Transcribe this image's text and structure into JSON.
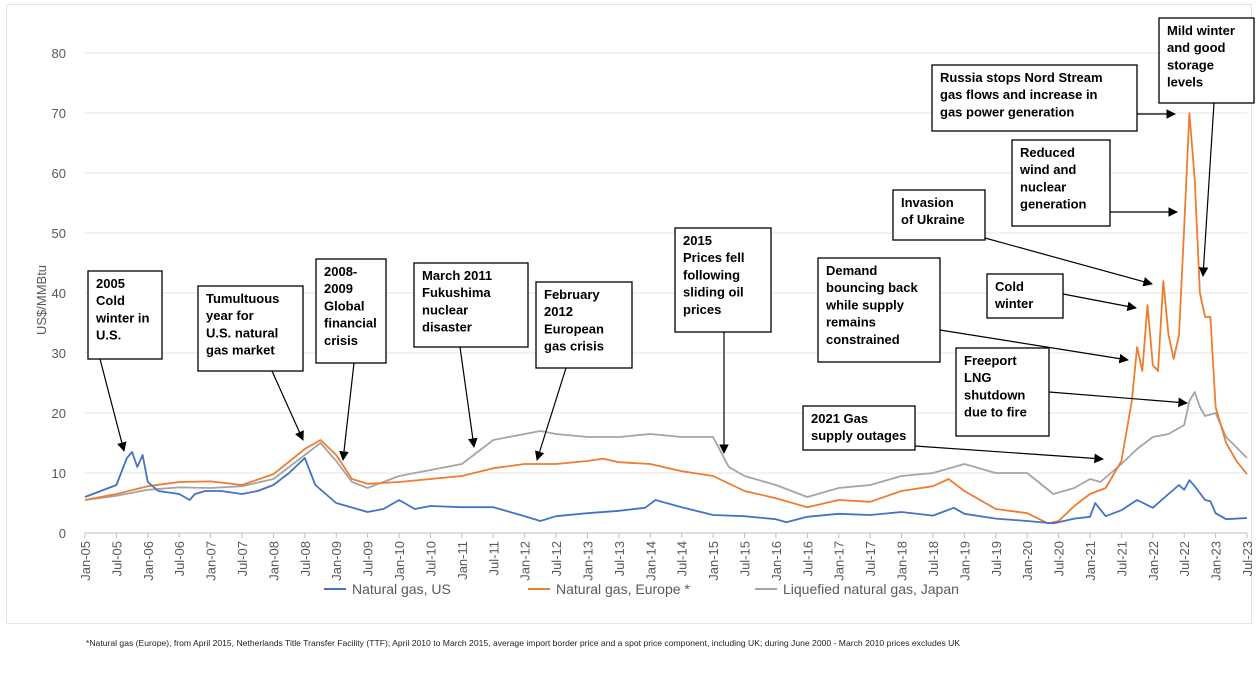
{
  "chart_data": {
    "type": "line",
    "title": "",
    "ylabel": "US$/MMBtu",
    "xlabel": "",
    "ylim": [
      0,
      80
    ],
    "yticks": [
      0,
      10,
      20,
      30,
      40,
      50,
      60,
      70,
      80
    ],
    "x_start": "Jan-05",
    "x_end": "Jul-23",
    "xticks": [
      "Jan-05",
      "Jul-05",
      "Jan-06",
      "Jul-06",
      "Jan-07",
      "Jul-07",
      "Jan-08",
      "Jul-08",
      "Jan-09",
      "Jul-09",
      "Jan-10",
      "Jul-10",
      "Jan-11",
      "Jul-11",
      "Jan-12",
      "Jul-12",
      "Jan-13",
      "Jul-13",
      "Jan-14",
      "Jul-14",
      "Jan-15",
      "Jul-15",
      "Jan-16",
      "Jul-16",
      "Jan-17",
      "Jul-17",
      "Jan-18",
      "Jul-18",
      "Jan-19",
      "Jul-19",
      "Jan-20",
      "Jul-20",
      "Jan-21",
      "Jul-21",
      "Jan-22",
      "Jul-22",
      "Jan-23",
      "Jul-23"
    ],
    "grid": true,
    "legend_position": "bottom",
    "series": [
      {
        "name": "Natural gas, US",
        "color": "#4472c4",
        "points": [
          [
            "Jan-05",
            6.0
          ],
          [
            "Apr-05",
            7.0
          ],
          [
            "Jul-05",
            8.0
          ],
          [
            "Sep-05",
            12.5
          ],
          [
            "Oct-05",
            13.5
          ],
          [
            "Nov-05",
            11.0
          ],
          [
            "Dec-05",
            13.0
          ],
          [
            "Jan-06",
            8.5
          ],
          [
            "Mar-06",
            7.0
          ],
          [
            "Jul-06",
            6.5
          ],
          [
            "Sep-06",
            5.5
          ],
          [
            "Oct-06",
            6.5
          ],
          [
            "Dec-06",
            7.0
          ],
          [
            "Mar-07",
            7.0
          ],
          [
            "Jul-07",
            6.5
          ],
          [
            "Oct-07",
            7.0
          ],
          [
            "Jan-08",
            8.0
          ],
          [
            "Apr-08",
            10.0
          ],
          [
            "Jul-08",
            12.5
          ],
          [
            "Sep-08",
            8.0
          ],
          [
            "Jan-09",
            5.0
          ],
          [
            "Jul-09",
            3.5
          ],
          [
            "Oct-09",
            4.0
          ],
          [
            "Jan-10",
            5.5
          ],
          [
            "Apr-10",
            4.0
          ],
          [
            "Jul-10",
            4.5
          ],
          [
            "Jan-11",
            4.3
          ],
          [
            "Jul-11",
            4.3
          ],
          [
            "Jan-12",
            2.8
          ],
          [
            "Apr-12",
            2.0
          ],
          [
            "Jul-12",
            2.8
          ],
          [
            "Jan-13",
            3.3
          ],
          [
            "Jul-13",
            3.7
          ],
          [
            "Dec-13",
            4.2
          ],
          [
            "Feb-14",
            5.5
          ],
          [
            "Jul-14",
            4.3
          ],
          [
            "Jan-15",
            3.0
          ],
          [
            "Jul-15",
            2.8
          ],
          [
            "Jan-16",
            2.3
          ],
          [
            "Mar-16",
            1.8
          ],
          [
            "Jul-16",
            2.7
          ],
          [
            "Jan-17",
            3.2
          ],
          [
            "Jul-17",
            3.0
          ],
          [
            "Jan-18",
            3.5
          ],
          [
            "Jul-18",
            2.9
          ],
          [
            "Nov-18",
            4.2
          ],
          [
            "Jan-19",
            3.2
          ],
          [
            "Jul-19",
            2.4
          ],
          [
            "Jan-20",
            2.0
          ],
          [
            "Jun-20",
            1.6
          ],
          [
            "Oct-20",
            2.4
          ],
          [
            "Jan-21",
            2.7
          ],
          [
            "Feb-21",
            5.0
          ],
          [
            "Apr-21",
            2.8
          ],
          [
            "Jul-21",
            3.8
          ],
          [
            "Oct-21",
            5.5
          ],
          [
            "Jan-22",
            4.2
          ],
          [
            "Apr-22",
            6.5
          ],
          [
            "Jun-22",
            8.0
          ],
          [
            "Jul-22",
            7.2
          ],
          [
            "Aug-22",
            8.8
          ],
          [
            "Sep-22",
            7.8
          ],
          [
            "Nov-22",
            5.5
          ],
          [
            "Dec-22",
            5.3
          ],
          [
            "Jan-23",
            3.3
          ],
          [
            "Mar-23",
            2.3
          ],
          [
            "Jul-23",
            2.5
          ]
        ]
      },
      {
        "name": "Natural gas, Europe *",
        "color": "#ed7d31",
        "points": [
          [
            "Jan-05",
            5.5
          ],
          [
            "Jul-05",
            6.5
          ],
          [
            "Jan-06",
            7.8
          ],
          [
            "Jul-06",
            8.5
          ],
          [
            "Jan-07",
            8.6
          ],
          [
            "Jul-07",
            8.0
          ],
          [
            "Jan-08",
            9.8
          ],
          [
            "Jul-08",
            14.0
          ],
          [
            "Oct-08",
            15.5
          ],
          [
            "Jan-09",
            13.0
          ],
          [
            "Apr-09",
            9.0
          ],
          [
            "Jul-09",
            8.2
          ],
          [
            "Jan-10",
            8.5
          ],
          [
            "Jul-10",
            9.0
          ],
          [
            "Jan-11",
            9.5
          ],
          [
            "Jul-11",
            10.8
          ],
          [
            "Jan-12",
            11.5
          ],
          [
            "Jul-12",
            11.5
          ],
          [
            "Jan-13",
            12.0
          ],
          [
            "Apr-13",
            12.4
          ],
          [
            "Jul-13",
            11.8
          ],
          [
            "Jan-14",
            11.5
          ],
          [
            "Jul-14",
            10.3
          ],
          [
            "Jan-15",
            9.5
          ],
          [
            "Jul-15",
            7.0
          ],
          [
            "Jan-16",
            5.8
          ],
          [
            "Jul-16",
            4.3
          ],
          [
            "Jan-17",
            5.5
          ],
          [
            "Jul-17",
            5.2
          ],
          [
            "Jan-18",
            7.0
          ],
          [
            "Jul-18",
            7.8
          ],
          [
            "Oct-18",
            9.0
          ],
          [
            "Jan-19",
            7.0
          ],
          [
            "Jul-19",
            4.0
          ],
          [
            "Jan-20",
            3.3
          ],
          [
            "May-20",
            1.6
          ],
          [
            "Jul-20",
            2.0
          ],
          [
            "Oct-20",
            4.5
          ],
          [
            "Jan-21",
            6.5
          ],
          [
            "Apr-21",
            7.5
          ],
          [
            "Jul-21",
            12.0
          ],
          [
            "Sep-21",
            22.0
          ],
          [
            "Oct-21",
            31.0
          ],
          [
            "Nov-21",
            27.0
          ],
          [
            "Dec-21",
            38.0
          ],
          [
            "Jan-22",
            28.0
          ],
          [
            "Feb-22",
            27.0
          ],
          [
            "Mar-22",
            42.0
          ],
          [
            "Apr-22",
            33.0
          ],
          [
            "May-22",
            29.0
          ],
          [
            "Jun-22",
            33.0
          ],
          [
            "Jul-22",
            51.0
          ],
          [
            "Aug-22",
            70.0
          ],
          [
            "Sep-22",
            59.0
          ],
          [
            "Oct-22",
            40.0
          ],
          [
            "Nov-22",
            36.0
          ],
          [
            "Dec-22",
            36.0
          ],
          [
            "Jan-23",
            21.0
          ],
          [
            "Mar-23",
            15.0
          ],
          [
            "May-23",
            12.0
          ],
          [
            "Jul-23",
            9.8
          ]
        ]
      },
      {
        "name": "Liquefied natural gas, Japan",
        "color": "#a5a5a5",
        "points": [
          [
            "Jan-05",
            5.5
          ],
          [
            "Jul-05",
            6.2
          ],
          [
            "Jan-06",
            7.2
          ],
          [
            "Jul-06",
            7.6
          ],
          [
            "Jan-07",
            7.5
          ],
          [
            "Jul-07",
            7.8
          ],
          [
            "Jan-08",
            9.0
          ],
          [
            "Jul-08",
            13.0
          ],
          [
            "Oct-08",
            15.0
          ],
          [
            "Jan-09",
            12.0
          ],
          [
            "Apr-09",
            8.5
          ],
          [
            "Jul-09",
            7.5
          ],
          [
            "Jan-10",
            9.5
          ],
          [
            "Jul-10",
            10.5
          ],
          [
            "Jan-11",
            11.5
          ],
          [
            "Jul-11",
            15.5
          ],
          [
            "Jan-12",
            16.5
          ],
          [
            "Apr-12",
            17.0
          ],
          [
            "Jul-12",
            16.5
          ],
          [
            "Jan-13",
            16.0
          ],
          [
            "Jul-13",
            16.0
          ],
          [
            "Jan-14",
            16.5
          ],
          [
            "Jul-14",
            16.0
          ],
          [
            "Jan-15",
            16.0
          ],
          [
            "Apr-15",
            11.0
          ],
          [
            "Jul-15",
            9.5
          ],
          [
            "Jan-16",
            8.0
          ],
          [
            "Jul-16",
            6.0
          ],
          [
            "Jan-17",
            7.5
          ],
          [
            "Jul-17",
            8.0
          ],
          [
            "Jan-18",
            9.5
          ],
          [
            "Jul-18",
            10.0
          ],
          [
            "Jan-19",
            11.5
          ],
          [
            "Jul-19",
            10.0
          ],
          [
            "Jan-20",
            10.0
          ],
          [
            "Jun-20",
            6.5
          ],
          [
            "Oct-20",
            7.5
          ],
          [
            "Jan-21",
            9.0
          ],
          [
            "Mar-21",
            8.5
          ],
          [
            "Jul-21",
            11.5
          ],
          [
            "Oct-21",
            14.0
          ],
          [
            "Jan-22",
            16.0
          ],
          [
            "Apr-22",
            16.5
          ],
          [
            "Jul-22",
            18.0
          ],
          [
            "Aug-22",
            22.0
          ],
          [
            "Sep-22",
            23.5
          ],
          [
            "Oct-22",
            21.0
          ],
          [
            "Nov-22",
            19.5
          ],
          [
            "Jan-23",
            20.0
          ],
          [
            "Mar-23",
            16.0
          ],
          [
            "Jul-23",
            12.5
          ]
        ]
      }
    ],
    "annotations": [
      {
        "lines": [
          "2005",
          "Cold",
          "winter in",
          "U.S."
        ]
      },
      {
        "lines": [
          "Tumultuous",
          "year for",
          "U.S. natural",
          "gas market"
        ]
      },
      {
        "lines": [
          "2008-",
          "2009",
          "Global",
          "financial",
          "crisis"
        ]
      },
      {
        "lines": [
          "March 2011",
          "Fukushima",
          "nuclear",
          "disaster"
        ]
      },
      {
        "lines": [
          "February",
          "2012",
          "European",
          "gas crisis"
        ]
      },
      {
        "lines": [
          "2015",
          "Prices fell",
          "following",
          "sliding oil",
          "prices"
        ]
      },
      {
        "lines": [
          "Demand",
          "bouncing back",
          "while supply",
          "remains",
          "constrained"
        ]
      },
      {
        "lines": [
          "2021 Gas",
          "supply outages"
        ]
      },
      {
        "lines": [
          "Cold",
          "winter"
        ]
      },
      {
        "lines": [
          "Invasion",
          "of Ukraine"
        ]
      },
      {
        "lines": [
          "Reduced",
          "wind and",
          "nuclear",
          "generation"
        ]
      },
      {
        "lines": [
          "Russia stops Nord Stream",
          "gas flows and increase in",
          "gas power generation"
        ]
      },
      {
        "lines": [
          "Mild winter",
          "and good",
          "storage",
          "levels"
        ]
      },
      {
        "lines": [
          "Freeport",
          "LNG",
          "shutdown",
          "due to fire"
        ]
      }
    ]
  },
  "footnote": "*Natural gas (Europe), from April 2015, Netherlands Title Transfer Facility (TTF); April 2010 to March 2015, average import border price and a spot price component, including UK; during June 2000 - March 2010 prices excludes UK"
}
